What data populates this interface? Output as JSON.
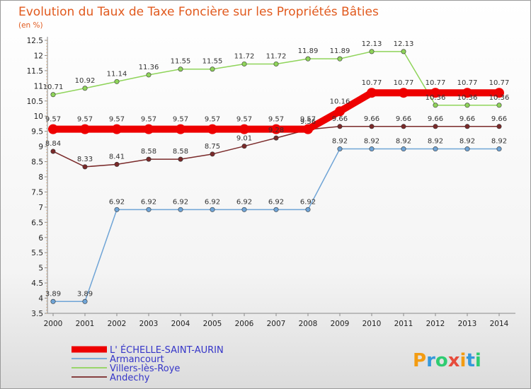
{
  "chart_data": {
    "type": "line",
    "title": "Evolution du Taux de Taxe Foncière sur les Propriétés Bâties",
    "subtitle": "(en %)",
    "categories": [
      "2000",
      "2001",
      "2002",
      "2003",
      "2004",
      "2005",
      "2006",
      "2007",
      "2008",
      "2009",
      "2010",
      "2011",
      "2012",
      "2013",
      "2014"
    ],
    "ylim": [
      3.5,
      12.5
    ],
    "yticks": [
      "3.5",
      "4",
      "4.5",
      "5",
      "5.5",
      "6",
      "6.5",
      "7",
      "7.5",
      "8",
      "8.5",
      "9",
      "9.5",
      "10",
      "10.5",
      "11",
      "11.5",
      "12",
      "12.5"
    ],
    "series": [
      {
        "name": "L' ÉCHELLE-SAINT-AURIN",
        "color": "#ee0000",
        "values": [
          9.57,
          9.57,
          9.57,
          9.57,
          9.57,
          9.57,
          9.57,
          9.57,
          9.57,
          10.16,
          10.77,
          10.77,
          10.77,
          10.77,
          10.77
        ],
        "labels": [
          "9.57",
          "9.57",
          "9.57",
          "9.57",
          "9.57",
          "9.57",
          "9.57",
          "9.57",
          "9.57",
          "10.16",
          "10.77",
          "10.77",
          "10.77",
          "10.77",
          "10.77"
        ]
      },
      {
        "name": "Armancourt",
        "color": "#6fa4d6",
        "values": [
          3.89,
          3.89,
          6.92,
          6.92,
          6.92,
          6.92,
          6.92,
          6.92,
          6.92,
          8.92,
          8.92,
          8.92,
          8.92,
          8.92,
          8.92
        ],
        "labels": [
          "3.89",
          "3.89",
          "6.92",
          "6.92",
          "6.92",
          "6.92",
          "6.92",
          "6.92",
          "6.92",
          "8.92",
          "8.92",
          "8.92",
          "8.92",
          "8.92",
          "8.92"
        ]
      },
      {
        "name": "Villers-lès-Roye",
        "color": "#8fd45a",
        "values": [
          10.71,
          10.92,
          11.14,
          11.36,
          11.55,
          11.55,
          11.72,
          11.72,
          11.89,
          11.89,
          12.13,
          12.13,
          10.36,
          10.36,
          10.36
        ],
        "labels": [
          "10.71",
          "10.92",
          "11.14",
          "11.36",
          "11.55",
          "11.55",
          "11.72",
          "11.72",
          "11.89",
          "11.89",
          "12.13",
          "12.13",
          "10.36",
          "10.36",
          "10.36"
        ]
      },
      {
        "name": "Andechy",
        "color": "#7a2a2a",
        "values": [
          8.84,
          8.33,
          8.41,
          8.58,
          8.58,
          8.75,
          9.01,
          9.28,
          9.56,
          9.66,
          9.66,
          9.66,
          9.66,
          9.66,
          9.66
        ],
        "labels": [
          "8.84",
          "8.33",
          "8.41",
          "8.58",
          "8.58",
          "8.75",
          "9.01",
          "9.28",
          "9.56",
          "9.66",
          "9.66",
          "9.66",
          "9.66",
          "9.66",
          "9.66"
        ]
      }
    ],
    "legend_position": "bottom-left",
    "grid": false
  },
  "branding": {
    "logo_text": "Proxiti",
    "logo_colors": [
      "#f39c12",
      "#3498db",
      "#2ecc71",
      "#e74c3c"
    ]
  }
}
